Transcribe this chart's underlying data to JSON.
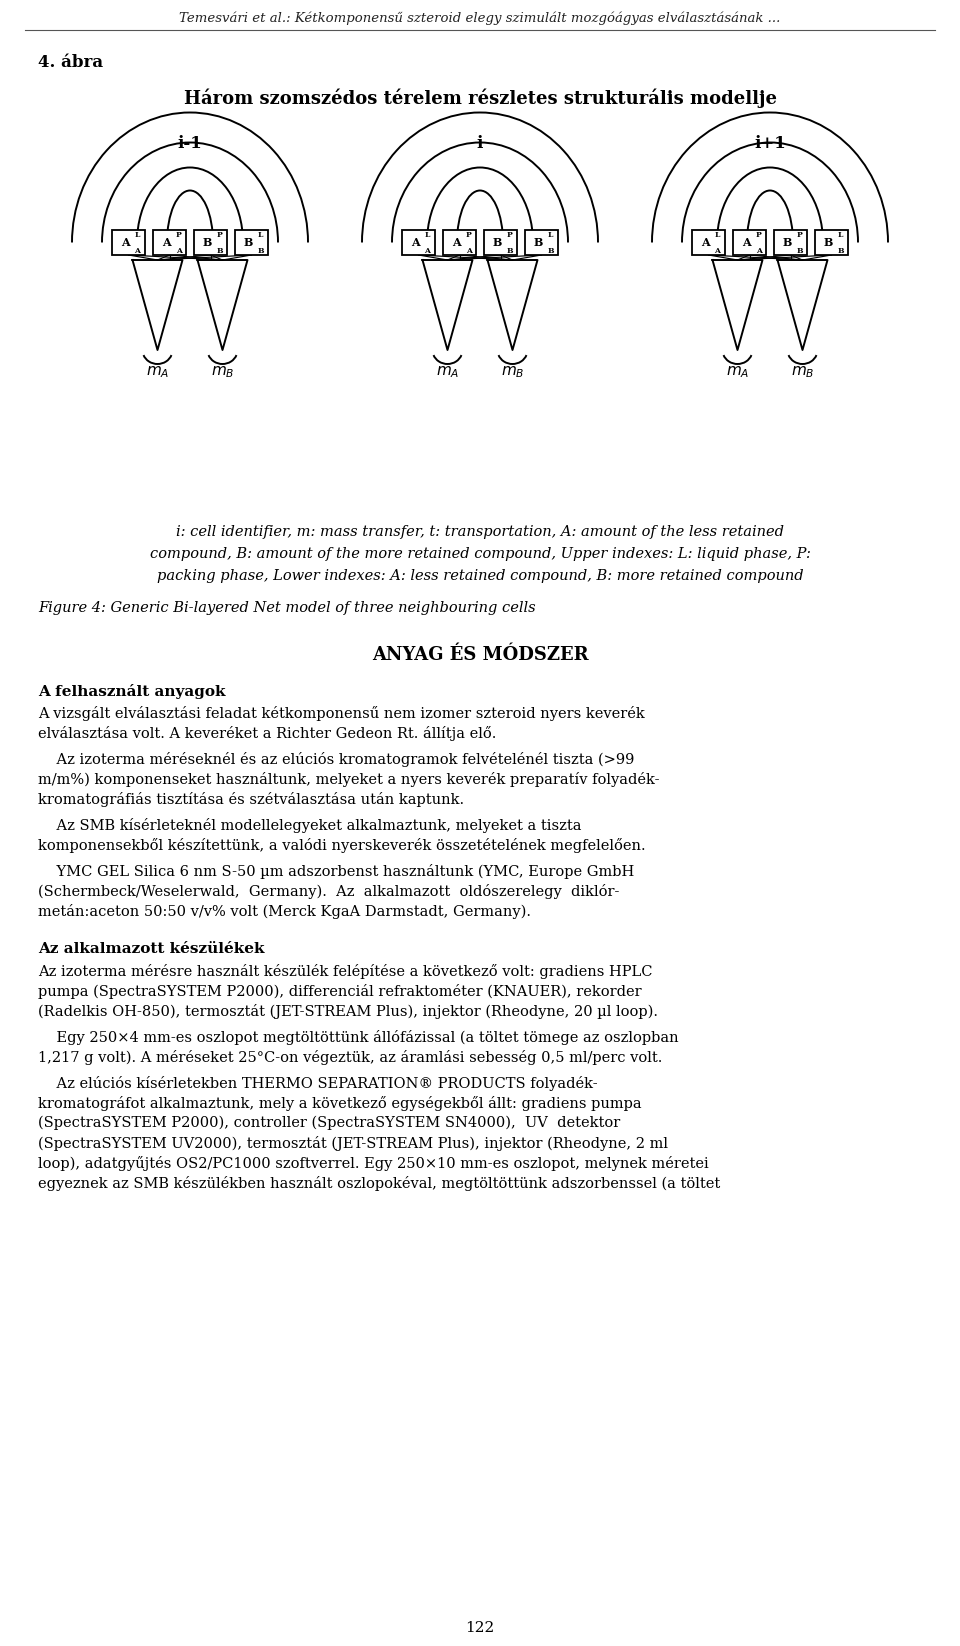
{
  "header_italic": "Temesvári et al.: Kétkomponensű szteroid elegy szimulált mozgóágyas elválasztásának ...",
  "section_label": "4. ábra",
  "figure_title": "Három szomszédos térelem részletes strukturális modellje",
  "cell_labels": [
    "i-1",
    "i",
    "i+1"
  ],
  "caption_line1": "i: cell identifier, m: mass transfer, t: transportation, A: amount of the less retained",
  "caption_line2": "compound, B: amount of the more retained compound, Upper indexes: L: liquid phase, P:",
  "caption_line3": "packing phase, Lower indexes: A: less retained compound, B: more retained compound",
  "figure_caption": "Figure 4: Generic Bi-layered Net model of three neighbouring cells",
  "section_title": "ANYAG ÉS MÓDSZER",
  "bold_heading": "A felhasznált anyagok",
  "para1_lines": [
    "A vizsgált elválasztási feladat kétkomponensű nem izomer szteroid nyers keverék",
    "elválasztása volt. A keveréket a Richter Gedeon Rt. állítja elő."
  ],
  "para2_lines": [
    "    Az izoterma méréseknél és az elúciós kromatogramok felvételénél tiszta (>99",
    "m/m%) komponenseket használtunk, melyeket a nyers keverék preparatív folyadék-",
    "kromatográfiás tisztítása és szétválasztása után kaptunk."
  ],
  "para3_lines": [
    "    Az SMB kísérleteknél modellelegyeket alkalmaztunk, melyeket a tiszta",
    "komponensekből készítettünk, a valódi nyerskeverék összetételének megfelelően."
  ],
  "para4_lines": [
    "    YMC GEL Silica 6 nm S-50 µm adszorbenst használtunk (YMC, Europe GmbH",
    "(Schermbeck/Weselerwald,  Germany).  Az  alkalmazott  oldószerelegy  diklór-",
    "metán:aceton 50:50 v/v% volt (Merck KgaA Darmstadt, Germany)."
  ],
  "bold_heading2": "Az alkalmazott készülékek",
  "para5_lines": [
    "Az izoterma mérésre használt készülék felépítése a következő volt: gradiens HPLC",
    "pumpa (SpectraSYSTEM P2000), differenciál refraktométer (KNAUER), rekorder",
    "(Radelkis OH-850), termosztát (JET-STREAM Plus), injektor (Rheodyne, 20 µl loop)."
  ],
  "para6_lines": [
    "    Egy 250×4 mm-es oszlopot megtöltöttünk állófázissal (a töltet tömege az oszlopban",
    "1,217 g volt). A méréseket 25°C-on végeztük, az áramlási sebesség 0,5 ml/perc volt."
  ],
  "para7_lines": [
    "    Az elúciós kísérletekben THERMO SEPARATION® PRODUCTS folyadék-",
    "kromatográfot alkalmaztunk, mely a következő egységekből állt: gradiens pumpa",
    "(SpectraSYSTEM P2000), controller (SpectraSYSTEM SN4000),  UV  detektor",
    "(SpectraSYSTEM UV2000), termosztát (JET-STREAM Plus), injektor (Rheodyne, 2 ml",
    "loop), adatgyűjtés OS2/PC1000 szoftverrel. Egy 250×10 mm-es oszlopot, melynek méretei",
    "egyeznek az SMB készülékben használt oszlopokéval, megtöltöttünk adszorbenssel (a töltet"
  ],
  "page_number": "122",
  "bg_color": "#ffffff",
  "text_color": "#000000"
}
